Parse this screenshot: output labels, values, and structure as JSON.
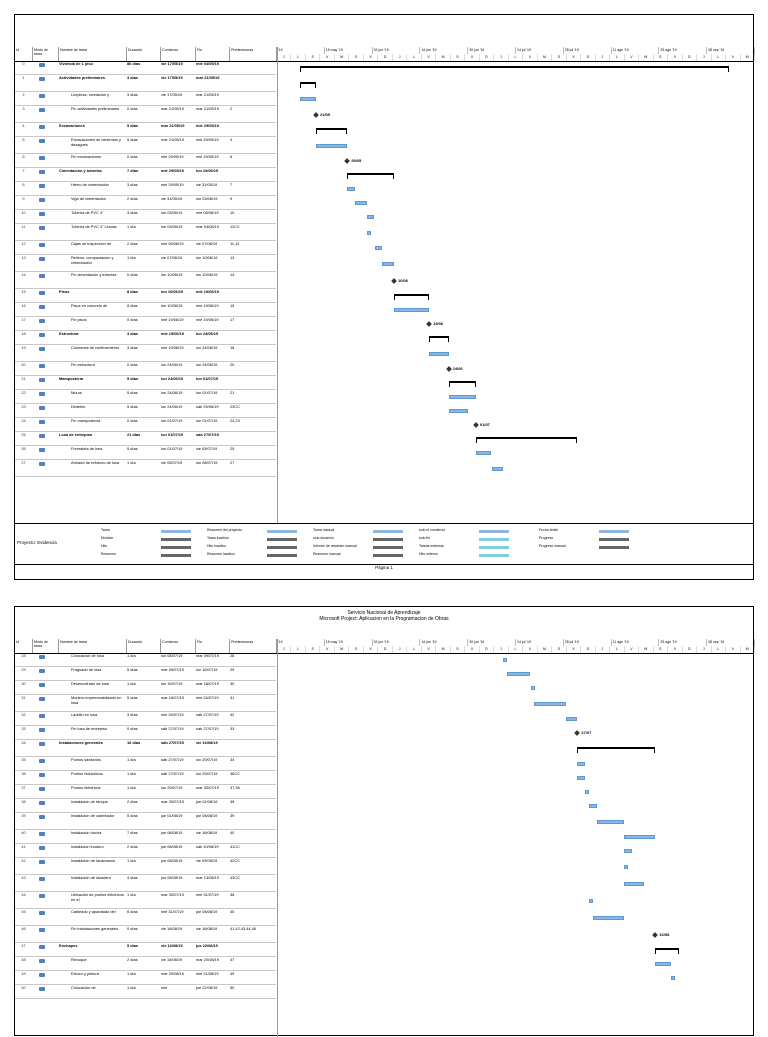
{
  "page2_header": {
    "org": "Servicio Nacional de Aprendizaje",
    "subtitle": "Microsoft Project: Aplicacion en la Programacion de Obras"
  },
  "columns": {
    "id": "Id",
    "mode": "Modo de tarea",
    "name": "Nombre de tarea",
    "duration": "Duración",
    "start": "Comienzo",
    "end": "Fin",
    "predecessors": "Predecesoras"
  },
  "timeline": {
    "top": [
      "'19",
      "19 may '19",
      "02 jun '19",
      "16 jun '19",
      "30 jun '19",
      "14 jul '19",
      "28 jul '19",
      "11 ago '19",
      "25 ago '19",
      "08 sep '19"
    ],
    "bottom": [
      "J",
      "L",
      "S",
      "V",
      "M",
      "S",
      "X",
      "D",
      "J",
      "L",
      "V",
      "M",
      "S",
      "X",
      "D",
      "J",
      "L",
      "V",
      "M",
      "S",
      "X",
      "D",
      "J",
      "L",
      "V",
      "M",
      "S",
      "X",
      "D",
      "J",
      "L",
      "V",
      "M"
    ]
  },
  "page1_tasks": [
    {
      "id": "0",
      "name": "Vivienda de 1 piso",
      "duration": "86 días",
      "start": "vie 17/05/19",
      "end": "mié 04/09/19",
      "pred": "",
      "summary": true
    },
    {
      "id": "1",
      "name": "Actividades preliminares",
      "duration": "3 días",
      "start": "vie 17/05/19",
      "end": "mar 21/05/19",
      "pred": "",
      "summary": true
    },
    {
      "id": "2",
      "name": "Limpieza, nivelación y",
      "duration": "3 días",
      "start": "vie 17/05/19",
      "end": "mar 21/05/19",
      "pred": ""
    },
    {
      "id": "3",
      "name": "Fin actividades preliminares",
      "duration": "0 días",
      "start": "mar 21/05/19",
      "end": "mar 21/05/19",
      "pred": "2"
    },
    {
      "id": "4",
      "name": "Excavaciones",
      "duration": "5 días",
      "start": "mar 21/05/19",
      "end": "mié 29/05/19",
      "pred": "",
      "summary": true
    },
    {
      "id": "5",
      "name": "Excavaciones de cimientos y desagues",
      "duration": "5 días",
      "start": "mar 21/05/19",
      "end": "mié 29/05/19",
      "pred": "4"
    },
    {
      "id": "6",
      "name": "Fin excavaciones",
      "duration": "0 días",
      "start": "mié 29/05/19",
      "end": "mié 29/05/19",
      "pred": "6"
    },
    {
      "id": "7",
      "name": "Cimentación y tuberias",
      "duration": "7 días",
      "start": "mié 29/05/19",
      "end": "lun 10/06/19",
      "pred": "",
      "summary": true
    },
    {
      "id": "8",
      "name": "Hierro de cimentación",
      "duration": "3 días",
      "start": "mié 29/05/19",
      "end": "vie 31/05/19",
      "pred": "7"
    },
    {
      "id": "9",
      "name": "Viga de cimentación",
      "duration": "2 días",
      "start": "vie 31/05/19",
      "end": "lun 03/06/19",
      "pred": "9"
    },
    {
      "id": "10",
      "name": "Tubería de PVC 4\"",
      "duration": "3 días",
      "start": "lun 03/06/19",
      "end": "mié 05/06/19",
      "pred": "10"
    },
    {
      "id": "11",
      "name": "Tubería de PVC 4\" Lluvias",
      "duration": "1 día",
      "start": "lun 03/06/19",
      "end": "mar 04/06/19",
      "pred": "11CC"
    },
    {
      "id": "12",
      "name": "Cajas de inspección de",
      "duration": "2 días",
      "start": "mié 05/06/19",
      "end": "vie 07/06/19",
      "pred": "11,12"
    },
    {
      "id": "13",
      "name": "Relleno, compactación y cimentación",
      "duration": "1 día",
      "start": "vie 07/06/19",
      "end": "lun 10/06/19",
      "pred": "13"
    },
    {
      "id": "14",
      "name": "Fin cimentación y tuberías",
      "duration": "0 días",
      "start": "lun 10/06/19",
      "end": "lun 10/06/19",
      "pred": "14"
    },
    {
      "id": "15",
      "name": "Pisos",
      "duration": "8 días",
      "start": "lun 10/06/19",
      "end": "mié 19/06/19",
      "pred": "",
      "summary": true
    },
    {
      "id": "16",
      "name": "Pisos en concreto de",
      "duration": "8 días",
      "start": "lun 10/06/19",
      "end": "mié 19/06/19",
      "pred": "15"
    },
    {
      "id": "17",
      "name": "Fin pisos",
      "duration": "0 días",
      "start": "mié 19/06/19",
      "end": "mié 19/06/19",
      "pred": "17"
    },
    {
      "id": "18",
      "name": "Estructura",
      "duration": "3 días",
      "start": "mié 19/06/19",
      "end": "lun 24/06/19",
      "pred": "",
      "summary": true
    },
    {
      "id": "19",
      "name": "Columnas de confinamiento",
      "duration": "3 días",
      "start": "mié 19/06/19",
      "end": "lun 24/06/19",
      "pred": "18"
    },
    {
      "id": "20",
      "name": "Fin estructura",
      "duration": "0 días",
      "start": "lun 24/06/19",
      "end": "lun 24/06/19",
      "pred": "20"
    },
    {
      "id": "21",
      "name": "Mampostería",
      "duration": "5 días",
      "start": "lun 24/06/19",
      "end": "lun 01/07/19",
      "pred": "",
      "summary": true
    },
    {
      "id": "22",
      "name": "Muros",
      "duration": "5 días",
      "start": "lun 24/06/19",
      "end": "lun 01/07/19",
      "pred": "21"
    },
    {
      "id": "23",
      "name": "Dinteles",
      "duration": "5 días",
      "start": "lun 24/06/19",
      "end": "sáb 29/06/19",
      "pred": "23CC"
    },
    {
      "id": "24",
      "name": "Fin mampostería",
      "duration": "0 días",
      "start": "lun 01/07/19",
      "end": "lun 01/07/19",
      "pred": "24,23"
    },
    {
      "id": "25",
      "name": "Losa de entrepiso",
      "duration": "21 días",
      "start": "lun 01/07/19",
      "end": "sáb 27/07/19",
      "pred": "",
      "summary": true
    },
    {
      "id": "26",
      "name": "Formaleta de losa",
      "duration": "5 días",
      "start": "lun 01/07/19",
      "end": "vie 05/07/19",
      "pred": "25"
    },
    {
      "id": "27",
      "name": "Armado de refuerzo de losa",
      "duration": "1 día",
      "start": "vie 05/07/19",
      "end": "lun 08/07/19",
      "pred": "27"
    }
  ],
  "page2_tasks": [
    {
      "id": "28",
      "name": "Colocacion de losa",
      "duration": "1 día",
      "start": "lun 08/07/19",
      "end": "mar 09/07/19",
      "pred": "28"
    },
    {
      "id": "29",
      "name": "Fraguado de losa",
      "duration": "5 días",
      "start": "mar 09/07/19",
      "end": "lun 15/07/19",
      "pred": "29"
    },
    {
      "id": "30",
      "name": "Desencofrado de losa",
      "duration": "1 día",
      "start": "lun 15/07/19",
      "end": "mar 16/07/19",
      "pred": "30"
    },
    {
      "id": "31",
      "name": "Mortero impermeabilizado en losa",
      "duration": "5 días",
      "start": "mar 16/07/19",
      "end": "mié 24/07/19",
      "pred": "31"
    },
    {
      "id": "32",
      "name": "Ladrillo en losa",
      "duration": "3 días",
      "start": "mié 24/07/19",
      "end": "sáb 27/07/19",
      "pred": "32"
    },
    {
      "id": "33",
      "name": "Fin losa de entrepiso",
      "duration": "0 días",
      "start": "sáb 27/07/19",
      "end": "sáb 27/07/19",
      "pred": "33"
    },
    {
      "id": "34",
      "name": "Instalaciones generales",
      "duration": "16 días",
      "start": "sáb 27/07/19",
      "end": "vie 16/08/19",
      "pred": "",
      "summary": true
    },
    {
      "id": "35",
      "name": "Puntos sanitarios",
      "duration": "1 día",
      "start": "sáb 27/07/19",
      "end": "lun 29/07/19",
      "pred": "34"
    },
    {
      "id": "36",
      "name": "Puntos hidráulicos",
      "duration": "1 día",
      "start": "sáb 27/07/19",
      "end": "lun 29/07/19",
      "pred": "36CC"
    },
    {
      "id": "37",
      "name": "Puntos eléctricos",
      "duration": "1 día",
      "start": "lun 29/07/19",
      "end": "mar 30/07/19",
      "pred": "37,36"
    },
    {
      "id": "38",
      "name": "Instalación de tanque",
      "duration": "2 días",
      "start": "mar 30/07/19",
      "end": "jue 01/08/19",
      "pred": "38"
    },
    {
      "id": "39",
      "name": "Instalación de calentador",
      "duration": "5 días",
      "start": "jue 01/08/19",
      "end": "jue 08/08/19",
      "pred": "39"
    },
    {
      "id": "40",
      "name": "Instalación ducha",
      "duration": "7 días",
      "start": "jue 08/08/19",
      "end": "vie 16/08/19",
      "pred": "40"
    },
    {
      "id": "41",
      "name": "Instalación inodoro",
      "duration": "2 días",
      "start": "jue 08/08/19",
      "end": "sáb 10/08/19",
      "pred": "41CC"
    },
    {
      "id": "42",
      "name": "Instalación de lavamanos",
      "duration": "1 día",
      "start": "jue 08/08/19",
      "end": "vie 09/08/19",
      "pred": "42CC"
    },
    {
      "id": "43",
      "name": "Instalación de lavadero",
      "duration": "4 días",
      "start": "jue 08/08/19",
      "end": "mar 13/08/19",
      "pred": "43CC"
    },
    {
      "id": "44",
      "name": "Ubicación de puntos eléctricos en el",
      "duration": "1 día",
      "start": "mar 30/07/19",
      "end": "mié 31/07/19",
      "pred": "38"
    },
    {
      "id": "45",
      "name": "Cableado y aparatado del",
      "duration": "6 días",
      "start": "mié 31/07/19",
      "end": "jue 08/08/19",
      "pred": "45"
    },
    {
      "id": "46",
      "name": "Fin instalaciones generales",
      "duration": "0 días",
      "start": "vie 16/08/19",
      "end": "vie 16/08/19",
      "pred": "41,42,43,44,46"
    },
    {
      "id": "47",
      "name": "Enchapes",
      "duration": "5 días",
      "start": "vie 16/08/19",
      "end": "jue 22/08/19",
      "pred": "",
      "summary": true
    },
    {
      "id": "48",
      "name": "Revoque",
      "duration": "2 días",
      "start": "vie 16/08/19",
      "end": "mar 20/08/19",
      "pred": "47"
    },
    {
      "id": "49",
      "name": "Estuco y pintura",
      "duration": "1 día",
      "start": "mar 20/08/19",
      "end": "mié 21/08/19",
      "pred": "49"
    },
    {
      "id": "50",
      "name": "Colocación de",
      "duration": "1 día",
      "start": "mié",
      "end": "jue 22/08/19",
      "pred": "50"
    }
  ],
  "milestones": [
    "21/05",
    "29/05",
    "10/06",
    "19/06",
    "24/06",
    "01/07",
    "27/07",
    "16/08"
  ],
  "legend": {
    "project": "Proyecto: Evidencia",
    "col1": [
      "Tarea",
      "División",
      "Hito",
      "Resumen"
    ],
    "col2": [
      "Resumen del proyecto",
      "Tarea inactiva",
      "Hito inactivo",
      "Resumen inactivo"
    ],
    "col3": [
      "Tarea manual",
      "solo duración",
      "Informe de resumen manual",
      "Resumen manual"
    ],
    "col4": [
      "solo el comienzo",
      "solo fin",
      "Tareas externas",
      "Hito externo"
    ],
    "col5": [
      "Fecha límite",
      "Progreso",
      "Progreso manual"
    ]
  },
  "footer": "Página 1"
}
